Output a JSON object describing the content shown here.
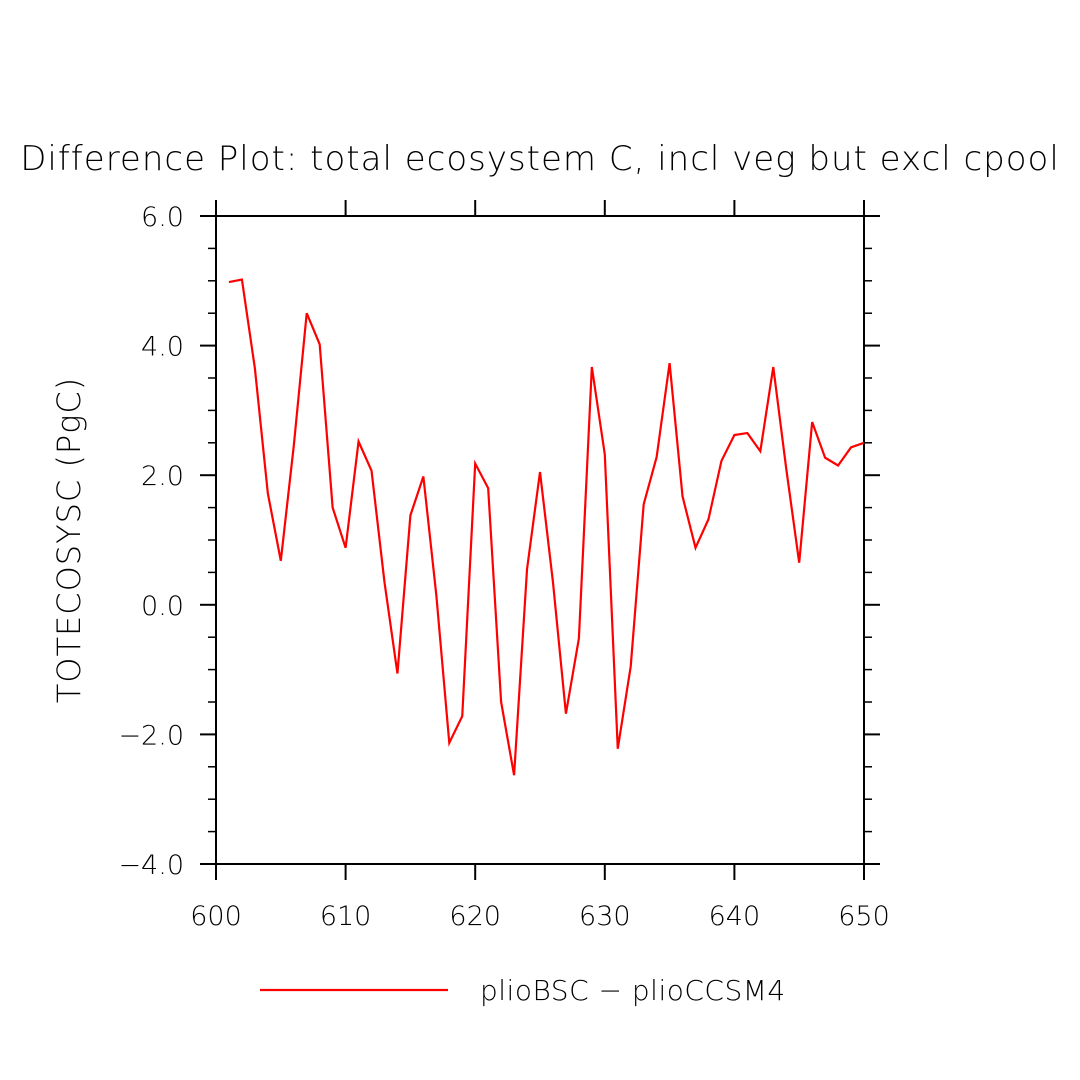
{
  "chart_data": {
    "type": "line",
    "title": "Difference Plot: total ecosystem C, incl veg but excl cpool",
    "xlabel": "",
    "ylabel": "TOTECOSYSC  (PgC)",
    "xlim": [
      600,
      650
    ],
    "ylim": [
      -4.0,
      6.0
    ],
    "x_ticks": [
      600,
      610,
      620,
      630,
      640,
      650
    ],
    "x_tick_labels": [
      "600",
      "610",
      "620",
      "630",
      "640",
      "650"
    ],
    "y_ticks": [
      -4.0,
      -2.0,
      0.0,
      2.0,
      4.0,
      6.0
    ],
    "y_tick_labels": [
      "−4.0",
      "−2.0",
      "0.0",
      "2.0",
      "4.0",
      "6.0"
    ],
    "grid": false,
    "legend_position": "bottom",
    "series": [
      {
        "name": "plioBSC − plioCCSM4",
        "color": "#ff0000",
        "x": [
          601,
          602,
          603,
          604,
          605,
          606,
          607,
          608,
          609,
          610,
          611,
          612,
          613,
          614,
          615,
          616,
          617,
          618,
          619,
          620,
          621,
          622,
          623,
          624,
          625,
          626,
          627,
          628,
          629,
          630,
          631,
          632,
          633,
          634,
          635,
          636,
          637,
          638,
          639,
          640,
          641,
          642,
          643,
          644,
          645,
          646,
          647,
          648,
          649,
          650
        ],
        "y": [
          4.98,
          5.02,
          3.65,
          1.72,
          0.68,
          2.45,
          4.5,
          4.02,
          1.5,
          0.88,
          2.52,
          2.07,
          0.35,
          -1.06,
          1.38,
          1.98,
          0.15,
          -2.13,
          -1.72,
          2.18,
          1.8,
          -1.5,
          -2.63,
          0.55,
          2.05,
          0.35,
          -1.68,
          -0.52,
          3.67,
          2.32,
          -2.22,
          -0.95,
          1.55,
          2.28,
          3.73,
          1.67,
          0.88,
          1.32,
          2.22,
          2.62,
          2.65,
          2.37,
          3.67,
          2.1,
          0.65,
          2.82,
          2.27,
          2.15,
          2.43,
          2.5
        ]
      }
    ]
  }
}
